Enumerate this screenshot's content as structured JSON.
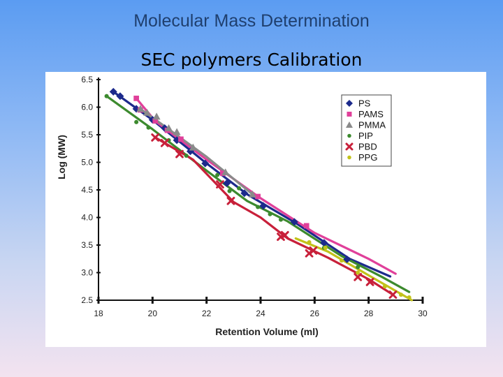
{
  "slide": {
    "title": "Molecular Mass Determination",
    "subtitle": "SEC polymers Calibration"
  },
  "chart_data": {
    "type": "scatter",
    "title": "",
    "xlabel": "Retention Volume (ml)",
    "ylabel": "Log (MW)",
    "xlim": [
      18,
      30
    ],
    "ylim": [
      2.5,
      6.5
    ],
    "xticks": [
      18,
      20,
      22,
      24,
      26,
      28,
      30
    ],
    "yticks": [
      2.5,
      3.0,
      3.5,
      4.0,
      4.5,
      5.0,
      5.5,
      6.0,
      6.5
    ],
    "xtick_labels": [
      "18",
      "20",
      "22",
      "24",
      "26",
      "28",
      "30"
    ],
    "ytick_labels": [
      "2.5",
      "3.0",
      "3.5",
      "4.0",
      "4.5",
      "5.0",
      "5.5",
      "6.0",
      "6.5"
    ],
    "grid": false,
    "legend_position": "top-right",
    "series": [
      {
        "name": "PS",
        "color": "#1c2a8c",
        "marker": "diamond",
        "points": [
          [
            18.55,
            6.28
          ],
          [
            18.8,
            6.2
          ],
          [
            19.4,
            5.97
          ],
          [
            20.0,
            5.77
          ],
          [
            20.45,
            5.62
          ],
          [
            20.9,
            5.4
          ],
          [
            21.4,
            5.2
          ],
          [
            21.95,
            4.98
          ],
          [
            22.75,
            4.62
          ],
          [
            23.4,
            4.44
          ],
          [
            24.1,
            4.21
          ],
          [
            25.25,
            3.92
          ],
          [
            26.35,
            3.54
          ],
          [
            27.2,
            3.24
          ]
        ],
        "line": [
          [
            18.55,
            6.28
          ],
          [
            20.0,
            5.77
          ],
          [
            21.95,
            5.0
          ],
          [
            23.5,
            4.42
          ],
          [
            25.3,
            3.9
          ],
          [
            27.3,
            3.25
          ],
          [
            28.8,
            2.93
          ]
        ]
      },
      {
        "name": "PAMS",
        "color": "#e0409a",
        "marker": "square",
        "points": [
          [
            19.4,
            6.16
          ],
          [
            19.55,
            5.95
          ],
          [
            20.1,
            5.75
          ],
          [
            20.55,
            5.58
          ],
          [
            21.05,
            5.42
          ],
          [
            22.6,
            4.8
          ],
          [
            23.9,
            4.38
          ],
          [
            25.7,
            3.85
          ]
        ],
        "line": [
          [
            19.4,
            6.16
          ],
          [
            20.1,
            5.75
          ],
          [
            22.0,
            5.05
          ],
          [
            24.0,
            4.35
          ],
          [
            26.0,
            3.72
          ],
          [
            28.0,
            3.25
          ],
          [
            29.0,
            2.98
          ]
        ]
      },
      {
        "name": "PMMA",
        "color": "#8a8a8a",
        "marker": "triangle",
        "points": [
          [
            19.55,
            5.97
          ],
          [
            19.8,
            5.9
          ],
          [
            20.15,
            5.83
          ],
          [
            20.6,
            5.62
          ],
          [
            20.9,
            5.55
          ],
          [
            21.5,
            5.27
          ],
          [
            22.7,
            4.82
          ],
          [
            23.7,
            4.42
          ]
        ],
        "line": [
          [
            19.55,
            5.97
          ],
          [
            20.6,
            5.6
          ],
          [
            22.0,
            5.1
          ],
          [
            23.7,
            4.42
          ]
        ]
      },
      {
        "name": "PIP",
        "color": "#3c8a2e",
        "marker": "circle",
        "points": [
          [
            18.3,
            6.2
          ],
          [
            19.4,
            5.73
          ],
          [
            19.85,
            5.63
          ],
          [
            20.6,
            5.4
          ],
          [
            21.25,
            5.12
          ],
          [
            22.4,
            4.77
          ],
          [
            22.85,
            4.48
          ],
          [
            23.2,
            4.53
          ],
          [
            23.9,
            4.19
          ],
          [
            24.35,
            4.06
          ],
          [
            24.75,
            3.96
          ],
          [
            26.35,
            3.45
          ],
          [
            27.6,
            3.1
          ]
        ],
        "line": [
          [
            18.3,
            6.2
          ],
          [
            20.0,
            5.6
          ],
          [
            22.0,
            4.85
          ],
          [
            23.5,
            4.3
          ],
          [
            25.0,
            3.93
          ],
          [
            27.0,
            3.3
          ],
          [
            28.5,
            2.92
          ],
          [
            29.5,
            2.65
          ]
        ]
      },
      {
        "name": "PBD",
        "color": "#c8203a",
        "marker": "x",
        "points": [
          [
            20.1,
            5.45
          ],
          [
            20.45,
            5.35
          ],
          [
            21.0,
            5.15
          ],
          [
            22.5,
            4.6
          ],
          [
            22.9,
            4.3
          ],
          [
            24.75,
            3.65
          ],
          [
            24.9,
            3.68
          ],
          [
            25.8,
            3.35
          ],
          [
            25.95,
            3.4
          ],
          [
            27.6,
            2.92
          ],
          [
            28.05,
            2.83
          ],
          [
            28.9,
            2.6
          ]
        ],
        "line": [
          [
            20.1,
            5.45
          ],
          [
            21.5,
            5.05
          ],
          [
            23.0,
            4.28
          ],
          [
            24.0,
            4.0
          ],
          [
            25.0,
            3.62
          ],
          [
            26.5,
            3.27
          ],
          [
            28.0,
            2.88
          ],
          [
            28.9,
            2.6
          ]
        ]
      },
      {
        "name": "PPG",
        "color": "#c2c21a",
        "marker": "circle",
        "points": [
          [
            25.8,
            3.55
          ],
          [
            26.4,
            3.45
          ],
          [
            27.0,
            3.22
          ],
          [
            27.6,
            3.0
          ],
          [
            28.6,
            2.75
          ],
          [
            29.2,
            2.6
          ],
          [
            29.5,
            2.55
          ]
        ],
        "line": [
          [
            25.3,
            3.62
          ],
          [
            26.5,
            3.38
          ],
          [
            28.0,
            2.95
          ],
          [
            29.6,
            2.5
          ]
        ]
      }
    ]
  }
}
